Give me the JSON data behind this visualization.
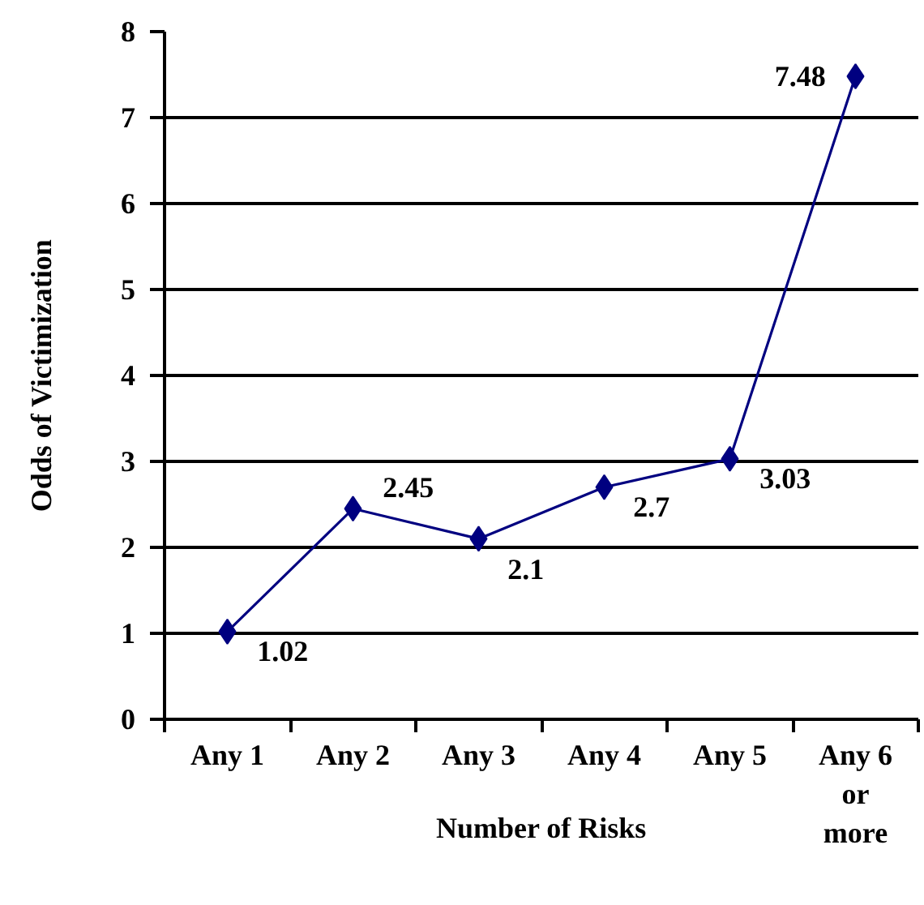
{
  "chart_data": {
    "type": "line",
    "xlabel": "Number of Risks",
    "ylabel": "Odds of Victimization",
    "categories": [
      "Any 1",
      "Any 2",
      "Any 3",
      "Any 4",
      "Any 5",
      "Any 6 or more"
    ],
    "series": [
      {
        "color": "#000080",
        "values": [
          1.02,
          2.45,
          2.1,
          2.7,
          3.03,
          7.48
        ]
      }
    ],
    "ylim": [
      0,
      8
    ],
    "yticks": [
      0,
      1,
      2,
      3,
      4,
      5,
      6,
      7,
      8
    ],
    "grid": "y",
    "marker": "diamond",
    "line_style": "solid",
    "data_labels": true
  }
}
